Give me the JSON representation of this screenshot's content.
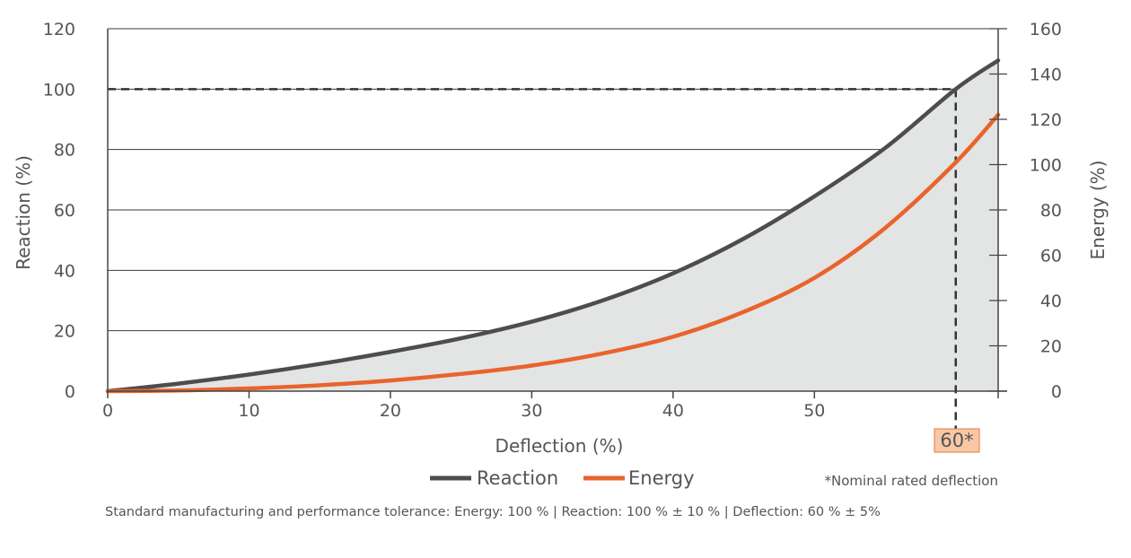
{
  "chart_data": {
    "type": "line",
    "title": "",
    "xlabel": "Deflection (%)",
    "ylabel": "Reaction (%)",
    "y2label": "Energy (%)",
    "xlim": [
      0,
      63
    ],
    "ylim": [
      0,
      120
    ],
    "y2lim": [
      0,
      160
    ],
    "x_ticks": [
      0,
      10,
      20,
      30,
      40,
      50
    ],
    "y_ticks": [
      0,
      20,
      40,
      60,
      80,
      100,
      120
    ],
    "y2_ticks": [
      0,
      20,
      40,
      60,
      80,
      100,
      120,
      140,
      160
    ],
    "grid": "horizontal",
    "legend_position": "bottom",
    "series": [
      {
        "name": "Reaction",
        "axis": "left",
        "color": "#4d4d4f",
        "fill": "#e3e4e4",
        "x": [
          0,
          5,
          10,
          15,
          20,
          25,
          30,
          35,
          40,
          45,
          50,
          55,
          60,
          63
        ],
        "y": [
          0,
          2.5,
          5.5,
          9,
          13,
          17.5,
          23,
          30,
          39,
          50.5,
          64.5,
          80.5,
          100,
          109.5
        ]
      },
      {
        "name": "Energy",
        "axis": "right",
        "color": "#e8642c",
        "x": [
          0,
          5,
          10,
          15,
          20,
          25,
          30,
          35,
          40,
          45,
          50,
          55,
          60,
          63
        ],
        "y": [
          0,
          0.3,
          1.2,
          2.6,
          4.7,
          7.6,
          11.3,
          16.6,
          24,
          35,
          50,
          72,
          101,
          122
        ]
      }
    ],
    "reference": {
      "reaction_level": 100,
      "deflection": 60,
      "marker_label": "60*",
      "marker_color": "#f8c8a6",
      "note": "*Nominal rated deflection"
    },
    "tolerance_text": "Standard manufacturing and performance tolerance: Energy: 100 % | Reaction: 100 %  ± 10 % | Deflection: 60 % ± 5%"
  }
}
